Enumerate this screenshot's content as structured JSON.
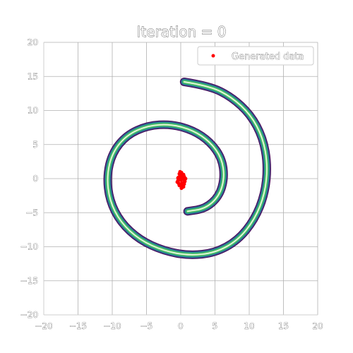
{
  "chart_data": {
    "type": "scatter",
    "title": "Iteration = 0",
    "xlabel": "",
    "ylabel": "",
    "xlim": [
      -20,
      20
    ],
    "ylim": [
      -20,
      20
    ],
    "xticks": [
      -20,
      -15,
      -10,
      -5,
      0,
      5,
      10,
      15,
      20
    ],
    "yticks": [
      -20,
      -15,
      -10,
      -5,
      0,
      5,
      10,
      15,
      20
    ],
    "xtick_labels": [
      "−20",
      "−15",
      "−10",
      "−5",
      "0",
      "5",
      "10",
      "15",
      "20"
    ],
    "ytick_labels": [
      "−20",
      "−15",
      "−10",
      "−5",
      "0",
      "5",
      "10",
      "15",
      "20"
    ],
    "grid": true,
    "legend_position": "top-right",
    "background_density": {
      "shape": "spiral ring (contour)",
      "path": [
        [
          0.5,
          14.2
        ],
        [
          4.2,
          13.6
        ],
        [
          7.4,
          12
        ],
        [
          10.2,
          9.4
        ],
        [
          12,
          6
        ],
        [
          12.7,
          2
        ],
        [
          12.3,
          -2.2
        ],
        [
          10.8,
          -6
        ],
        [
          8.3,
          -9.1
        ],
        [
          5,
          -10.9
        ],
        [
          1.2,
          -11.3
        ],
        [
          -2.5,
          -10.6
        ],
        [
          -6,
          -9
        ],
        [
          -8.8,
          -6.4
        ],
        [
          -10.4,
          -3.2
        ],
        [
          -10.8,
          0.4
        ],
        [
          -10,
          3.8
        ],
        [
          -7.9,
          6.4
        ],
        [
          -4.8,
          7.8
        ],
        [
          -1.4,
          8
        ],
        [
          1.8,
          7.1
        ],
        [
          4.3,
          5.4
        ],
        [
          6,
          3
        ],
        [
          6.4,
          0.1
        ],
        [
          5.6,
          -2.6
        ],
        [
          3.6,
          -4.4
        ],
        [
          1,
          -4.8
        ]
      ],
      "colors": [
        "#440154",
        "#3b528b",
        "#21918c",
        "#5ec962",
        "#fde725"
      ]
    },
    "series": [
      {
        "name": "Generated data",
        "color": "#ff0000",
        "x": [
          0.1,
          -0.3,
          0.4,
          0.2,
          -0.1,
          0.5,
          -0.4,
          0.3,
          0,
          0.6,
          -0.2,
          0.1,
          0.2,
          -0.5,
          0.4,
          0,
          0.3,
          -0.2,
          0.5,
          0.1,
          -0.3,
          0.2,
          0.7,
          -0.1,
          0.3,
          0,
          0.4,
          -0.4,
          0.2,
          0.1
        ],
        "y": [
          0.5,
          0.2,
          -0.1,
          -0.6,
          0.8,
          0.3,
          -0.3,
          -0.9,
          0,
          -0.4,
          -1,
          0.9,
          0.1,
          -0.5,
          -1.2,
          -0.2,
          0.6,
          0.7,
          -0.8,
          -1.4,
          -0.7,
          0.4,
          0,
          1,
          -1.1,
          0.3,
          0.6,
          0.1,
          -1.3,
          -0.9
        ]
      }
    ]
  }
}
